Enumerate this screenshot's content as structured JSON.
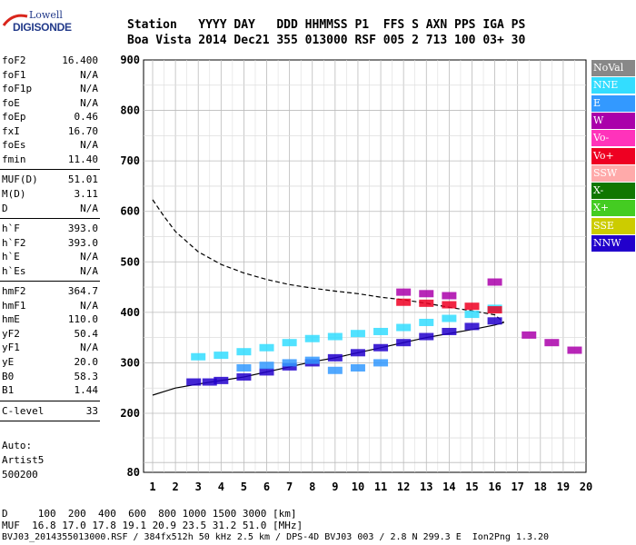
{
  "logo": {
    "top": "Lowell",
    "bottom": "DIGISONDE"
  },
  "header": {
    "line1": "Station   YYYY DAY   DDD HHMMSS P1  FFS S AXN PPS IGA PS",
    "line2": "Boa Vista 2014 Dec21 355 013000 RSF 005 2 713 100 03+ 30"
  },
  "params": [
    {
      "group": 1,
      "label": "foF2",
      "value": "16.400"
    },
    {
      "group": 1,
      "label": "foF1",
      "value": "N/A"
    },
    {
      "group": 1,
      "label": "foF1p",
      "value": "N/A"
    },
    {
      "group": 1,
      "label": "foE",
      "value": "N/A"
    },
    {
      "group": 1,
      "label": "foEp",
      "value": "0.46"
    },
    {
      "group": 1,
      "label": "fxI",
      "value": "16.70"
    },
    {
      "group": 1,
      "label": "foEs",
      "value": "N/A"
    },
    {
      "group": 1,
      "label": "fmin",
      "value": "11.40"
    },
    {
      "group": 2,
      "label": "MUF(D)",
      "value": "51.01"
    },
    {
      "group": 2,
      "label": "M(D)",
      "value": "3.11"
    },
    {
      "group": 2,
      "label": "D",
      "value": "N/A"
    },
    {
      "group": 3,
      "label": "h`F",
      "value": "393.0"
    },
    {
      "group": 3,
      "label": "h`F2",
      "value": "393.0"
    },
    {
      "group": 3,
      "label": "h`E",
      "value": "N/A"
    },
    {
      "group": 3,
      "label": "h`Es",
      "value": "N/A"
    },
    {
      "group": 4,
      "label": "hmF2",
      "value": "364.7"
    },
    {
      "group": 4,
      "label": "hmF1",
      "value": "N/A"
    },
    {
      "group": 4,
      "label": "hmE",
      "value": "110.0"
    },
    {
      "group": 4,
      "label": "yF2",
      "value": "50.4"
    },
    {
      "group": 4,
      "label": "yF1",
      "value": "N/A"
    },
    {
      "group": 4,
      "label": "yE",
      "value": "20.0"
    },
    {
      "group": 4,
      "label": "B0",
      "value": "58.3"
    },
    {
      "group": 4,
      "label": "B1",
      "value": "1.44"
    },
    {
      "group": 5,
      "label": "C-level",
      "value": "33"
    }
  ],
  "autoscaling": {
    "line1": "Auto:",
    "line2": "Artist5",
    "line3": "500200"
  },
  "legend": [
    {
      "label": "NoVal",
      "color": "#888888"
    },
    {
      "label": "NNE",
      "color": "#33ddff"
    },
    {
      "label": "E",
      "color": "#3399ff"
    },
    {
      "label": "W",
      "color": "#aa00aa"
    },
    {
      "label": "Vo-",
      "color": "#ff33bb"
    },
    {
      "label": "Vo+",
      "color": "#ee0022"
    },
    {
      "label": "SSW",
      "color": "#ffaaaa"
    },
    {
      "label": "X-",
      "color": "#117700"
    },
    {
      "label": "X+",
      "color": "#44cc22"
    },
    {
      "label": "SSE",
      "color": "#cccc00"
    },
    {
      "label": "NNW",
      "color": "#2200cc"
    }
  ],
  "footer": {
    "line1": "D     100  200  400  600  800 1000 1500 3000 [km]",
    "line2": "MUF  16.8 17.0 17.8 19.1 20.9 23.5 31.2 51.0 [MHz]",
    "line3": "BVJ03_2014355013000.RSF / 384fx512h 50 kHz 2.5 km / DPS-4D BVJ03 003 / 2.8 N 299.3 E  Ion2Png 1.3.20"
  },
  "chart_data": {
    "type": "scatter",
    "xlim": [
      1,
      20
    ],
    "ylim": [
      80,
      900
    ],
    "x_ticks": [
      1,
      2,
      3,
      4,
      5,
      6,
      7,
      8,
      9,
      10,
      11,
      12,
      13,
      14,
      15,
      16,
      17,
      18,
      19,
      20
    ],
    "y_ticks": [
      80,
      200,
      300,
      400,
      500,
      600,
      700,
      800,
      900
    ],
    "grid": true,
    "legend_position": "right",
    "series": [
      {
        "name": "NNE",
        "color": "#33ddff",
        "points": [
          [
            3.0,
            312
          ],
          [
            4.0,
            315
          ],
          [
            5.0,
            322
          ],
          [
            6.0,
            330
          ],
          [
            7.0,
            340
          ],
          [
            8.0,
            348
          ],
          [
            9.0,
            352
          ],
          [
            10.0,
            358
          ],
          [
            11.0,
            362
          ],
          [
            12.0,
            370
          ],
          [
            13.0,
            380
          ],
          [
            14.0,
            388
          ],
          [
            15.0,
            396
          ],
          [
            16.0,
            408
          ]
        ]
      },
      {
        "name": "NNW",
        "color": "#2200cc",
        "points": [
          [
            2.8,
            262
          ],
          [
            3.5,
            262
          ],
          [
            4.0,
            265
          ],
          [
            5.0,
            272
          ],
          [
            6.0,
            282
          ],
          [
            7.0,
            292
          ],
          [
            8.0,
            300
          ],
          [
            9.0,
            310
          ],
          [
            10.0,
            320
          ],
          [
            11.0,
            330
          ],
          [
            12.0,
            340
          ],
          [
            13.0,
            352
          ],
          [
            14.0,
            362
          ],
          [
            15.0,
            372
          ],
          [
            16.0,
            383
          ]
        ]
      },
      {
        "name": "Vo+",
        "color": "#ee0022",
        "points": [
          [
            12.0,
            420
          ],
          [
            13.0,
            418
          ],
          [
            14.0,
            415
          ],
          [
            15.0,
            412
          ],
          [
            16.0,
            405
          ]
        ]
      },
      {
        "name": "W",
        "color": "#aa00aa",
        "points": [
          [
            12.0,
            440
          ],
          [
            13.0,
            437
          ],
          [
            14.0,
            433
          ],
          [
            16.0,
            460
          ],
          [
            17.5,
            355
          ],
          [
            18.5,
            340
          ],
          [
            19.5,
            325
          ]
        ]
      },
      {
        "name": "E",
        "color": "#3399ff",
        "points": [
          [
            5.0,
            290
          ],
          [
            6.0,
            295
          ],
          [
            7.0,
            300
          ],
          [
            8.0,
            305
          ],
          [
            9.0,
            285
          ],
          [
            10.0,
            290
          ],
          [
            11.0,
            300
          ]
        ]
      }
    ],
    "curves": [
      {
        "style": "dashed",
        "points": [
          [
            1,
            623
          ],
          [
            1.5,
            590
          ],
          [
            2,
            560
          ],
          [
            3,
            520
          ],
          [
            4,
            495
          ],
          [
            5,
            478
          ],
          [
            6,
            465
          ],
          [
            7,
            455
          ],
          [
            8,
            448
          ],
          [
            9,
            442
          ],
          [
            10,
            437
          ],
          [
            11,
            430
          ],
          [
            12,
            425
          ],
          [
            13,
            418
          ],
          [
            14,
            410
          ],
          [
            15,
            403
          ],
          [
            16,
            395
          ],
          [
            16.4,
            380
          ]
        ]
      },
      {
        "style": "solid",
        "points": [
          [
            1,
            236
          ],
          [
            1.5,
            243
          ],
          [
            2,
            250
          ],
          [
            3,
            258
          ],
          [
            4,
            265
          ],
          [
            5,
            272
          ],
          [
            6,
            282
          ],
          [
            7,
            292
          ],
          [
            8,
            302
          ],
          [
            9,
            310
          ],
          [
            10,
            320
          ],
          [
            11,
            330
          ],
          [
            12,
            340
          ],
          [
            13,
            350
          ],
          [
            14,
            358
          ],
          [
            15,
            366
          ],
          [
            16,
            375
          ],
          [
            16.4,
            380
          ]
        ]
      }
    ]
  }
}
